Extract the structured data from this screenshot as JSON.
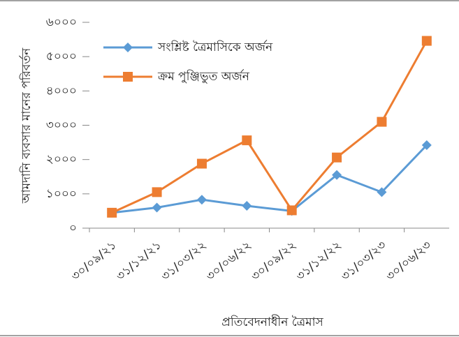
{
  "chart_data": {
    "type": "line",
    "x_label": "প্রতিবেদনাধীন ত্রৈমাস",
    "y_label": "আমদানি ব্যবসার মানের পরিবর্তন",
    "categories": [
      "৩০/০৯/২১",
      "৩১/১২/২১",
      "৩১/০৩/২২",
      "৩০/০৬/২২",
      "৩০/০৯/২২",
      "৩১/১২/২২",
      "৩১/০৩/২৩",
      "৩০/০৬/২৩"
    ],
    "series": [
      {
        "name": "সংশ্লিষ্ট ত্রৈমাসিকে অর্জন",
        "color": "#5b9bd5",
        "marker": "diamond",
        "values": [
          450,
          600,
          830,
          650,
          500,
          1550,
          1050,
          2420
        ]
      },
      {
        "name": "ক্রম পুঞ্জিভুত অর্জন",
        "color": "#ed7d31",
        "marker": "square",
        "values": [
          450,
          1050,
          1880,
          2560,
          520,
          2060,
          3100,
          5460
        ]
      }
    ],
    "ylim": [
      0,
      6000
    ],
    "yticks": [
      {
        "value": 0,
        "label": "০"
      },
      {
        "value": 1000,
        "label": "১০০০"
      },
      {
        "value": 2000,
        "label": "২০০০"
      },
      {
        "value": 3000,
        "label": "৩০০০"
      },
      {
        "value": 4000,
        "label": "৪০০০"
      },
      {
        "value": 5000,
        "label": "৫০০০"
      },
      {
        "value": 6000,
        "label": "৬০০০"
      }
    ],
    "grid": false,
    "legend": "upper left"
  }
}
